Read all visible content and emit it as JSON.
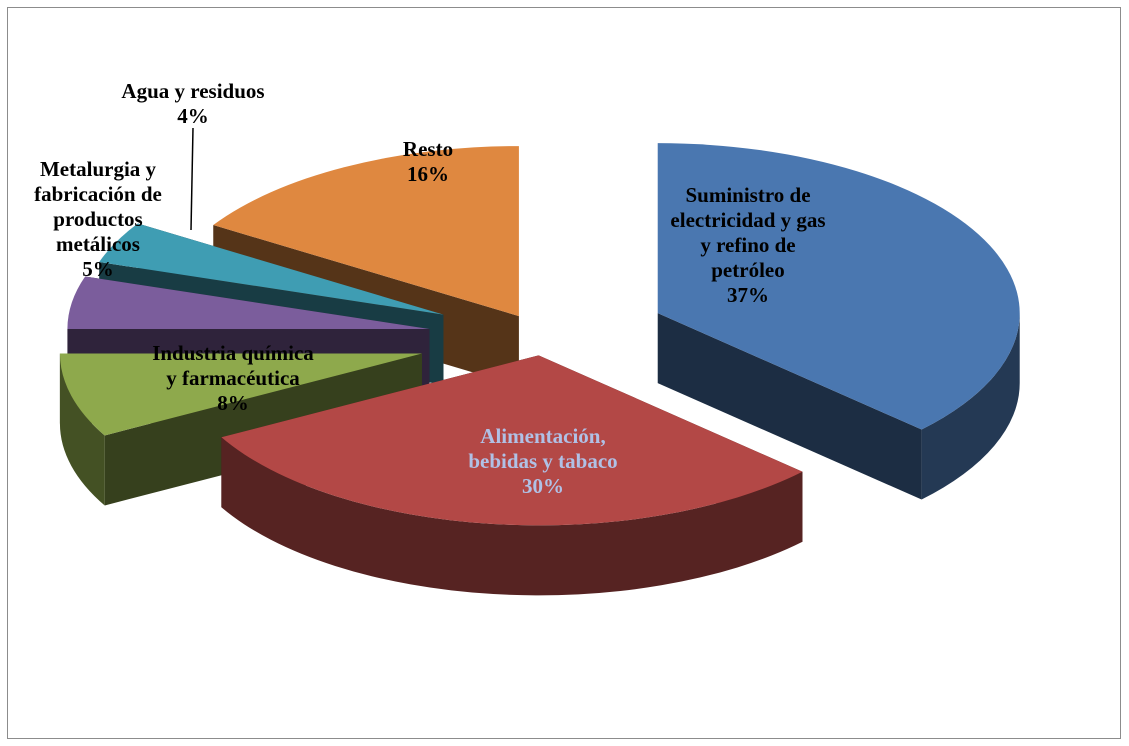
{
  "chart_data": {
    "type": "pie",
    "style": "3d-exploded",
    "slices": [
      {
        "label_lines": [
          "Suministro de",
          "electricidad y gas",
          "y refino de",
          "petróleo"
        ],
        "percent_text": "37%",
        "value": 37,
        "color": "#4a77b0",
        "label_color": "#000000"
      },
      {
        "label_lines": [
          "Alimentación,",
          "bebidas y tabaco"
        ],
        "percent_text": "30%",
        "value": 30,
        "color": "#b34846",
        "label_color": "#b0c1e6"
      },
      {
        "label_lines": [
          "Industria química",
          "y farmacéutica"
        ],
        "percent_text": "8%",
        "value": 8,
        "color": "#8ea94c",
        "label_color": "#000000"
      },
      {
        "label_lines": [
          "Metalurgia y",
          "fabricación de",
          "productos",
          "metálicos"
        ],
        "percent_text": "5%",
        "value": 5,
        "color": "#7b5d9c",
        "label_color": "#000000"
      },
      {
        "label_lines": [
          "Agua y residuos"
        ],
        "percent_text": "4%",
        "value": 4,
        "color": "#3f9db3",
        "label_color": "#000000"
      },
      {
        "label_lines": [
          "Resto"
        ],
        "percent_text": "16%",
        "value": 16,
        "color": "#df8840",
        "label_color": "#000000"
      }
    ],
    "legend": "none"
  }
}
